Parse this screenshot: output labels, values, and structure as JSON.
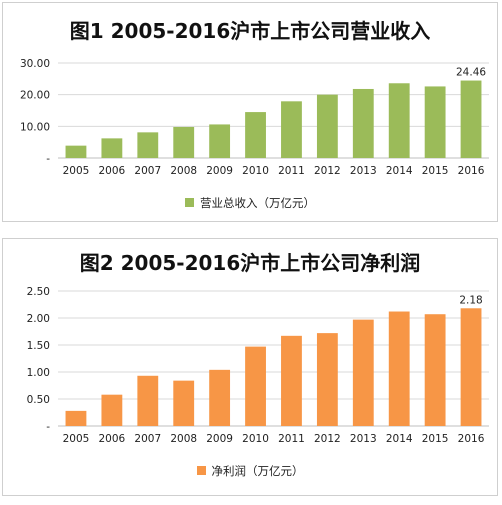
{
  "chart_data": [
    {
      "type": "bar",
      "title": "图1  2005-2016沪市上市公司营业收入",
      "categories": [
        "2005",
        "2006",
        "2007",
        "2008",
        "2009",
        "2010",
        "2011",
        "2012",
        "2013",
        "2014",
        "2015",
        "2016"
      ],
      "series": [
        {
          "name": "营业总收入（万亿元）",
          "values": [
            3.9,
            6.2,
            8.1,
            9.8,
            10.6,
            14.5,
            17.9,
            20.0,
            21.8,
            23.6,
            22.6,
            24.46
          ]
        }
      ],
      "data_labels": {
        "2016": "24.46"
      },
      "ytick_labels": [
        "-",
        "10.00",
        "20.00",
        "30.00"
      ],
      "ylim": [
        0,
        30
      ],
      "grid": true,
      "legend_position": "bottom",
      "color": "#9bbb59"
    },
    {
      "type": "bar",
      "title": "图2  2005-2016沪市上市公司净利润",
      "categories": [
        "2005",
        "2006",
        "2007",
        "2008",
        "2009",
        "2010",
        "2011",
        "2012",
        "2013",
        "2014",
        "2015",
        "2016"
      ],
      "series": [
        {
          "name": "净利润（万亿元）",
          "values": [
            0.28,
            0.58,
            0.93,
            0.84,
            1.04,
            1.47,
            1.67,
            1.72,
            1.97,
            2.12,
            2.07,
            2.18
          ]
        }
      ],
      "data_labels": {
        "2016": "2.18"
      },
      "ytick_labels": [
        "-",
        "0.50",
        "1.00",
        "1.50",
        "2.00",
        "2.50"
      ],
      "ylim": [
        0,
        2.5
      ],
      "grid": true,
      "legend_position": "bottom",
      "color": "#f79646"
    }
  ]
}
